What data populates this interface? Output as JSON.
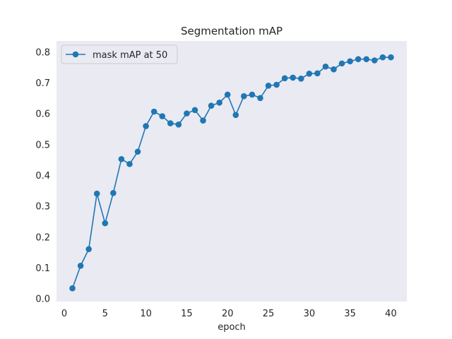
{
  "chart_data": {
    "type": "line",
    "title": "Segmentation mAP",
    "xlabel": "epoch",
    "ylabel": "",
    "xlim": [
      -0.95,
      41.95
    ],
    "ylim": [
      -0.01,
      0.835
    ],
    "xticks": [
      0,
      5,
      10,
      15,
      20,
      25,
      30,
      35,
      40
    ],
    "yticks": [
      0.0,
      0.1,
      0.2,
      0.3,
      0.4,
      0.5,
      0.6,
      0.7,
      0.8
    ],
    "ytick_labels": [
      "0.0",
      "0.1",
      "0.2",
      "0.3",
      "0.4",
      "0.5",
      "0.6",
      "0.7",
      "0.8"
    ],
    "grid": false,
    "legend_position": "top-left",
    "series": [
      {
        "name": "mask mAP at 50",
        "color": "#1f77b4",
        "marker": "circle",
        "x": [
          1,
          2,
          3,
          4,
          5,
          6,
          7,
          8,
          9,
          10,
          11,
          12,
          13,
          14,
          15,
          16,
          17,
          18,
          19,
          20,
          21,
          22,
          23,
          24,
          25,
          26,
          27,
          28,
          29,
          30,
          31,
          32,
          33,
          34,
          35,
          36,
          37,
          38,
          39,
          40
        ],
        "y": [
          0.033,
          0.106,
          0.16,
          0.34,
          0.244,
          0.342,
          0.452,
          0.436,
          0.476,
          0.559,
          0.606,
          0.591,
          0.568,
          0.564,
          0.6,
          0.611,
          0.577,
          0.625,
          0.635,
          0.661,
          0.595,
          0.656,
          0.661,
          0.65,
          0.69,
          0.693,
          0.714,
          0.716,
          0.713,
          0.729,
          0.73,
          0.752,
          0.743,
          0.762,
          0.769,
          0.776,
          0.776,
          0.772,
          0.782,
          0.782
        ]
      }
    ]
  },
  "colors": {
    "plot_background": "#eaeaf2",
    "text": "#262626"
  }
}
